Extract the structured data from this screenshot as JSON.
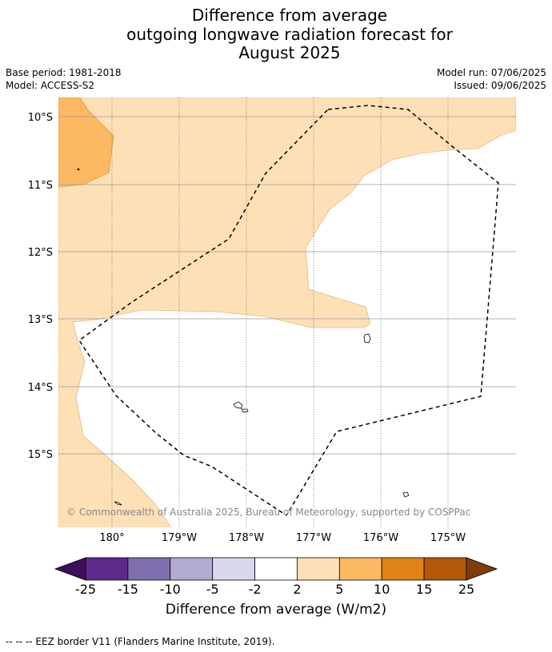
{
  "title": {
    "line1": "Difference from average",
    "line2": "outgoing longwave radiation forecast for",
    "line3": "August 2025"
  },
  "meta": {
    "base_period": "Base period: 1981-2018",
    "model": "Model: ACCESS-S2",
    "model_run": "Model run: 07/06/2025",
    "issued": "Issued: 09/06/2025"
  },
  "map": {
    "lat_labels": [
      "10°S",
      "11°S",
      "12°S",
      "13°S",
      "14°S",
      "15°S"
    ],
    "lon_labels": [
      "180°",
      "179°W",
      "178°W",
      "177°W",
      "176°W",
      "175°W"
    ],
    "copyright": "© Commonwealth of Australia 2025, Bureau of Meteorology, supported by COSPPac"
  },
  "colorbar": {
    "ticks": [
      "-25",
      "-15",
      "-10",
      "-5",
      "-2",
      "2",
      "5",
      "10",
      "15",
      "25"
    ],
    "colors": [
      "#3f0d5c",
      "#5b2a8c",
      "#7f6fae",
      "#b2aad1",
      "#d8d9ec",
      "#ffffff",
      "#fee0b6",
      "#fdb863",
      "#e08214",
      "#b35806",
      "#7f3b08"
    ],
    "label": "Difference from average (W/m2)"
  },
  "legend": {
    "eez_text": "--  --  -- EEZ border V11 (Flanders Marine Institute, 2019)."
  }
}
